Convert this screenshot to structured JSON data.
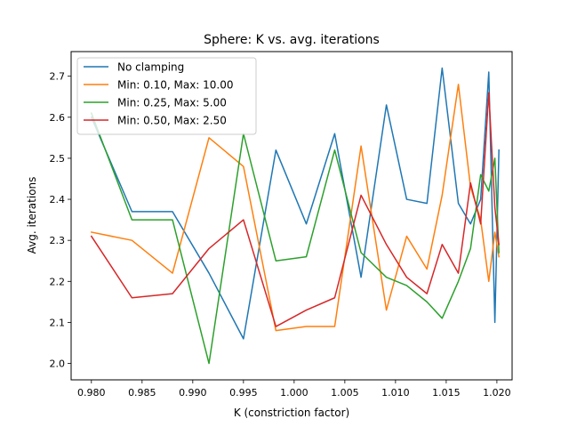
{
  "chart_data": {
    "type": "line",
    "title": "Sphere: K vs. avg. iterations",
    "xlabel": "K (constriction factor)",
    "ylabel": "Avg. iterations",
    "xlim": [
      0.978,
      1.0215
    ],
    "ylim": [
      1.96,
      2.76
    ],
    "xticks": [
      "0.980",
      "0.985",
      "0.990",
      "0.995",
      "1.000",
      "1.005",
      "1.010",
      "1.015",
      "1.020"
    ],
    "xtick_values": [
      0.98,
      0.985,
      0.99,
      0.995,
      1.0,
      1.005,
      1.01,
      1.015,
      1.02
    ],
    "yticks": [
      "2.0",
      "2.1",
      "2.2",
      "2.3",
      "2.4",
      "2.5",
      "2.6",
      "2.7"
    ],
    "ytick_values": [
      2.0,
      2.1,
      2.2,
      2.3,
      2.4,
      2.5,
      2.6,
      2.7
    ],
    "grid": false,
    "legend_position": "top-left",
    "x": [
      0.98,
      0.984,
      0.988,
      0.9916,
      0.995,
      0.9982,
      1.0012,
      1.004,
      1.0066,
      1.0091,
      1.0111,
      1.0131,
      1.0146,
      1.0162,
      1.0174,
      1.0184,
      1.0192,
      1.0198,
      1.0202
    ],
    "series": [
      {
        "name": "No clamping",
        "color": "#1f77b4",
        "values": [
          2.6,
          2.37,
          2.37,
          2.22,
          2.06,
          2.52,
          2.34,
          2.56,
          2.21,
          2.63,
          2.4,
          2.39,
          2.72,
          2.39,
          2.34,
          2.4,
          2.71,
          2.1,
          2.52
        ]
      },
      {
        "name": "Min: 0.10, Max: 10.00",
        "color": "#ff7f0e",
        "values": [
          2.32,
          2.3,
          2.22,
          2.55,
          2.48,
          2.08,
          2.09,
          2.09,
          2.53,
          2.13,
          2.31,
          2.23,
          2.41,
          2.68,
          2.43,
          2.35,
          2.2,
          2.32,
          2.26
        ]
      },
      {
        "name": "Min: 0.25, Max: 5.00",
        "color": "#2ca02c",
        "values": [
          2.61,
          2.35,
          2.35,
          2.0,
          2.56,
          2.25,
          2.26,
          2.52,
          2.27,
          2.21,
          2.19,
          2.15,
          2.11,
          2.2,
          2.28,
          2.46,
          2.42,
          2.5,
          2.27
        ]
      },
      {
        "name": "Min: 0.50, Max: 2.50",
        "color": "#d62728",
        "values": [
          2.31,
          2.16,
          2.17,
          2.28,
          2.35,
          2.09,
          2.13,
          2.16,
          2.41,
          2.29,
          2.21,
          2.17,
          2.29,
          2.22,
          2.44,
          2.34,
          2.66,
          2.38,
          2.29
        ]
      }
    ]
  }
}
